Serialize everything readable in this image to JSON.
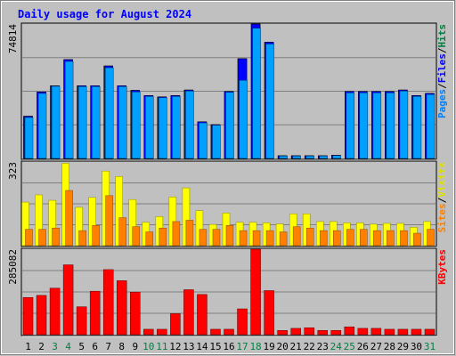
{
  "chart_data": {
    "title": "Daily usage for August 2024",
    "type": "bar",
    "categories": [
      "1",
      "2",
      "3",
      "4",
      "5",
      "6",
      "7",
      "8",
      "9",
      "10",
      "11",
      "12",
      "13",
      "14",
      "15",
      "16",
      "17",
      "18",
      "19",
      "20",
      "21",
      "22",
      "23",
      "24",
      "25",
      "26",
      "27",
      "28",
      "29",
      "30",
      "31"
    ],
    "weekend_days": [
      "3",
      "4",
      "10",
      "11",
      "17",
      "18",
      "24",
      "25",
      "31"
    ],
    "panels": [
      {
        "key": "hits",
        "max_label": "74814",
        "ymax": 74814,
        "legend": [
          {
            "text": "Pages",
            "color": "#0080ff"
          },
          {
            "text": "/",
            "color": "#000000"
          },
          {
            "text": "Files",
            "color": "#0000ff"
          },
          {
            "text": "/",
            "color": "#000000"
          },
          {
            "text": "Hits",
            "color": "#008040"
          }
        ],
        "series": [
          {
            "name": "Hits",
            "color": "#008040",
            "values": [
              23500,
              37000,
              40500,
              55000,
              40500,
              40500,
              51500,
              40500,
              37900,
              35000,
              34300,
              35000,
              38100,
              20400,
              18800,
              37300,
              55500,
              74814,
              64700,
              1500,
              1500,
              1500,
              1500,
              1800,
              37300,
              37300,
              37300,
              37300,
              38100,
              35000,
              36200
            ]
          },
          {
            "name": "Files",
            "color": "#0000ff",
            "values": [
              23500,
              37000,
              40500,
              55000,
              40500,
              40500,
              51500,
              40500,
              37900,
              35000,
              34300,
              35000,
              38100,
              20400,
              18800,
              37300,
              55500,
              74814,
              64700,
              1500,
              1500,
              1500,
              1500,
              1800,
              37300,
              37300,
              37300,
              37300,
              38100,
              35000,
              36200
            ]
          },
          {
            "name": "Pages",
            "color": "#00a0ff",
            "values": [
              22800,
              36200,
              40200,
              54000,
              40000,
              40000,
              50500,
              40000,
              37000,
              34500,
              33800,
              34500,
              37500,
              19800,
              18500,
              36800,
              43500,
              72500,
              63700,
              1300,
              1300,
              1300,
              1300,
              1600,
              36500,
              36500,
              36500,
              36500,
              37500,
              34500,
              35600
            ]
          }
        ]
      },
      {
        "key": "sites",
        "max_label": "323",
        "ymax": 323,
        "legend": [
          {
            "text": "Sites",
            "color": "#ff8000"
          },
          {
            "text": "/",
            "color": "#000000"
          },
          {
            "text": "Visits",
            "color": "#e0e000"
          }
        ],
        "series": [
          {
            "name": "Visits",
            "color": "#ffff00",
            "values": [
              168,
              196,
              175,
              318,
              148,
              186,
              288,
              267,
              178,
              90,
              112,
              188,
              223,
              135,
              82,
              126,
              90,
              90,
              88,
              84,
              123,
              123,
              93,
              93,
              88,
              88,
              83,
              86,
              86,
              71,
              93
            ]
          },
          {
            "name": "Sites",
            "color": "#ff8000",
            "values": [
              63,
              63,
              68,
              213,
              58,
              78,
              193,
              108,
              73,
              53,
              68,
              93,
              98,
              63,
              63,
              78,
              58,
              58,
              58,
              53,
              73,
              68,
              58,
              58,
              63,
              63,
              58,
              58,
              58,
              48,
              63
            ]
          }
        ]
      },
      {
        "key": "kbytes",
        "max_label": "285082",
        "ymax": 285082,
        "legend": [
          {
            "text": "KBytes",
            "color": "#ff0000"
          }
        ],
        "series": [
          {
            "name": "KBytes",
            "color": "#ff0000",
            "values": [
              124000,
              131000,
              155000,
              233000,
              93000,
              145000,
              217000,
              180000,
              142000,
              18000,
              18000,
              70000,
              150000,
              134000,
              18000,
              18000,
              86000,
              285082,
              147000,
              14000,
              21000,
              23000,
              14000,
              14000,
              26000,
              21000,
              21000,
              18000,
              18000,
              18000,
              18000
            ]
          }
        ]
      }
    ]
  }
}
